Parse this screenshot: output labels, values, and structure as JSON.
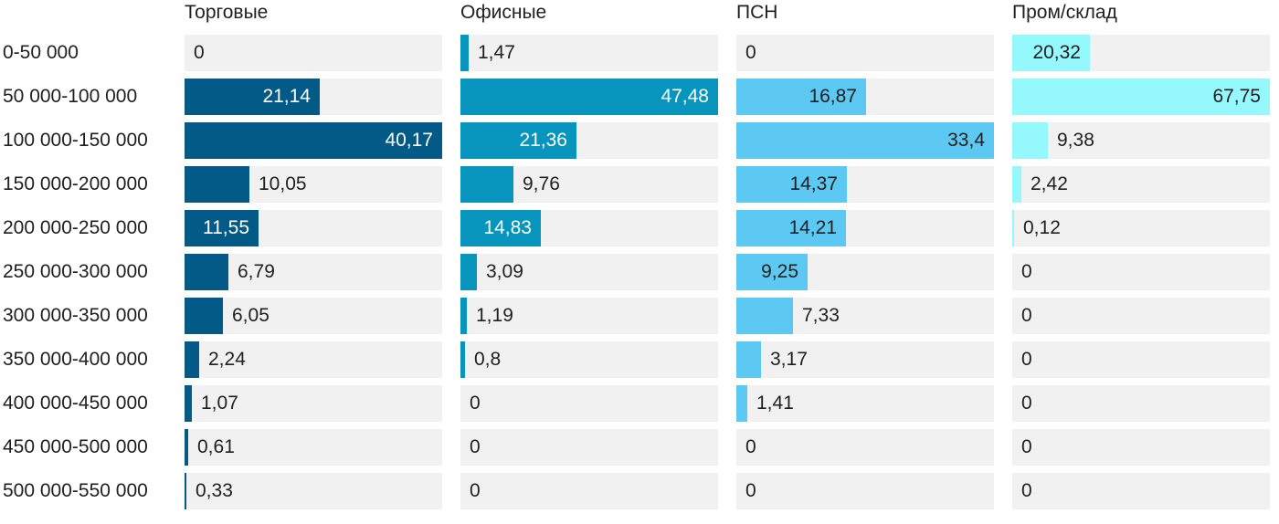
{
  "chart_data": {
    "type": "bar",
    "orientation": "horizontal",
    "layout": "small-multiples",
    "title": "",
    "categories": [
      "0-50 000",
      "50 000-100 000",
      "100 000-150 000",
      "150 000-200 000",
      "200 000-250 000",
      "250 000-300 000",
      "300 000-350 000",
      "350 000-400 000",
      "400 000-450 000",
      "450 000-500 000",
      "500 000-550 000"
    ],
    "series": [
      {
        "name": "Торговые",
        "color": "#035a87",
        "values": [
          0,
          21.14,
          40.17,
          10.05,
          11.55,
          6.79,
          6.05,
          2.24,
          1.07,
          0.61,
          0.33
        ],
        "labels": [
          "0",
          "21,14",
          "40,17",
          "10,05",
          "11,55",
          "6,79",
          "6,05",
          "2,24",
          "1,07",
          "0,61",
          "0,33"
        ]
      },
      {
        "name": "Офисные",
        "color": "#0794bd",
        "values": [
          1.47,
          47.48,
          21.36,
          9.76,
          14.83,
          3.09,
          1.19,
          0.8,
          0,
          0,
          0
        ],
        "labels": [
          "1,47",
          "47,48",
          "21,36",
          "9,76",
          "14,83",
          "3,09",
          "1,19",
          "0,8",
          "0",
          "0",
          "0"
        ]
      },
      {
        "name": "ПСН",
        "color": "#5dc8f2",
        "values": [
          0,
          16.87,
          33.4,
          14.37,
          14.21,
          9.25,
          7.33,
          3.17,
          1.41,
          0,
          0
        ],
        "labels": [
          "0",
          "16,87",
          "33,4",
          "14,37",
          "14,21",
          "9,25",
          "7,33",
          "3,17",
          "1,41",
          "0",
          "0"
        ]
      },
      {
        "name": "Пром/склад",
        "color": "#94f8fd",
        "values": [
          20.32,
          67.75,
          9.38,
          2.42,
          0.12,
          0,
          0,
          0,
          0,
          0,
          0
        ],
        "labels": [
          "20,32",
          "67,75",
          "9,38",
          "2,42",
          "0,12",
          "0",
          "0",
          "0",
          "0",
          "0",
          "0"
        ]
      }
    ],
    "grid": false,
    "legend": "none"
  }
}
